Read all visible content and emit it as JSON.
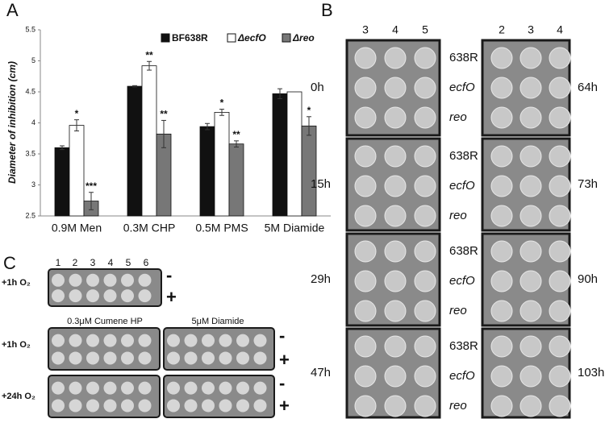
{
  "chart_data": {
    "type": "bar",
    "y_label": "Diameter of inhibition (cm)",
    "categories": [
      "0.9M Men",
      "0.3M CHP",
      "0.5M PMS",
      "5M Diamide"
    ],
    "series": [
      {
        "name": "BF638R",
        "color": "#111111",
        "values": [
          3.6,
          4.59,
          3.94,
          4.47
        ],
        "errors": [
          0.03,
          0.01,
          0.05,
          0.08
        ],
        "significance": [
          null,
          null,
          null,
          null
        ]
      },
      {
        "name": "ΔecfO",
        "color": "#ffffff",
        "values": [
          3.96,
          4.92,
          4.17,
          4.5
        ],
        "errors": [
          0.09,
          0.07,
          0.05,
          null
        ],
        "significance": [
          "*",
          "**",
          "*",
          null
        ]
      },
      {
        "name": "Δreo",
        "color": "#777777",
        "values": [
          2.74,
          3.82,
          3.66,
          3.95
        ],
        "errors": [
          0.14,
          0.22,
          0.05,
          0.15
        ],
        "significance": [
          "***",
          "**",
          "**",
          "*"
        ]
      }
    ],
    "ylim": [
      2.5,
      5.5
    ],
    "yticks": [
      2.5,
      3,
      3.5,
      4,
      4.5,
      5,
      5.5
    ],
    "legend": "top-right"
  },
  "panel_labels": [
    "A",
    "B",
    "C"
  ],
  "panel_b": {
    "columns_left": [
      "3",
      "4",
      "5"
    ],
    "columns_right": [
      "2",
      "3",
      "4"
    ],
    "strains": [
      "638R",
      "ecfO",
      "reo"
    ],
    "times_left": [
      "0h",
      "15h",
      "29h",
      "47h"
    ],
    "times_right": [
      "64h",
      "73h",
      "90h",
      "103h"
    ]
  },
  "panel_c": {
    "columns": [
      "1",
      "2",
      "3",
      "4",
      "5",
      "6"
    ],
    "conditions": [
      "+1h O₂",
      "+1h O₂",
      "+24h O₂"
    ],
    "treatments": [
      "0.3μM Cumene HP",
      "5μM Diamide"
    ],
    "signs": [
      "-",
      "+"
    ]
  }
}
